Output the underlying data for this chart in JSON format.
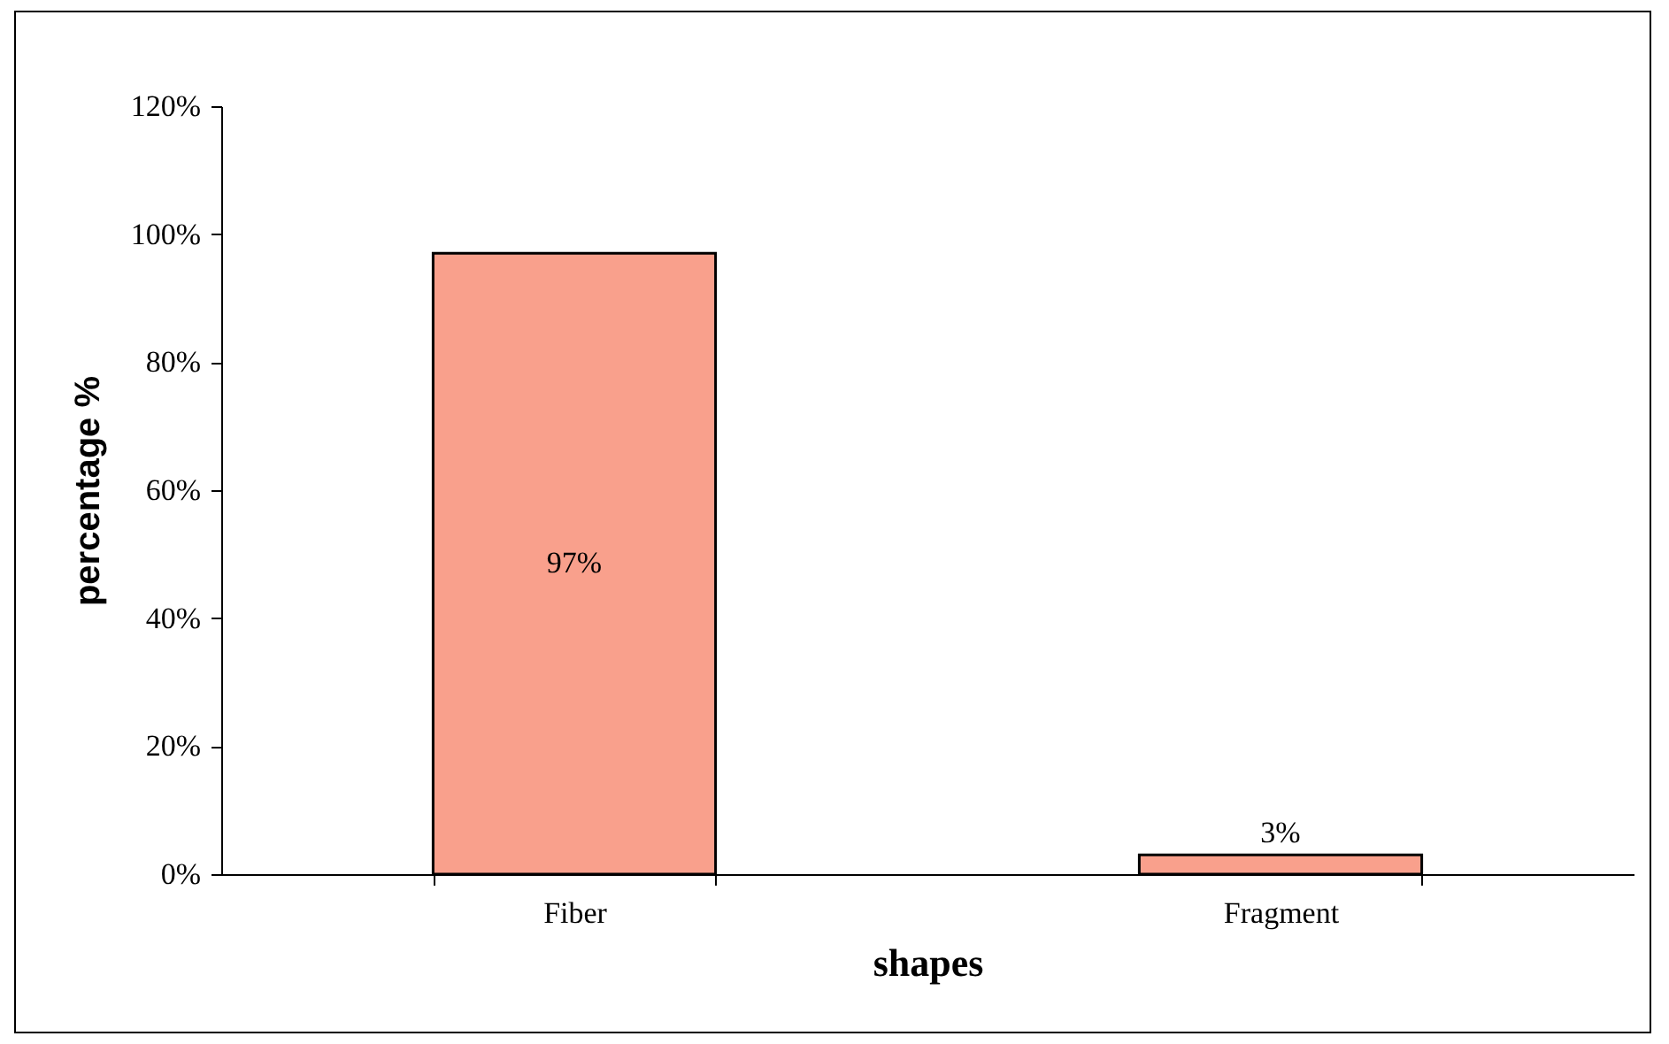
{
  "chart_data": {
    "type": "bar",
    "xlabel": "shapes",
    "ylabel": "percentage %",
    "categories": [
      "Fiber",
      "Fragment"
    ],
    "values": [
      97,
      3
    ],
    "color": "#f9a08c",
    "value_labels": [
      "97%",
      "3%"
    ],
    "ylim": [
      0,
      120
    ],
    "yticks": [
      {
        "value": 0,
        "label": "0%"
      },
      {
        "value": 20,
        "label": "20%"
      },
      {
        "value": 40,
        "label": "40%"
      },
      {
        "value": 60,
        "label": "60%"
      },
      {
        "value": 80,
        "label": "80%"
      },
      {
        "value": 100,
        "label": "100%"
      },
      {
        "value": 120,
        "label": "120%"
      }
    ],
    "grid": false
  }
}
